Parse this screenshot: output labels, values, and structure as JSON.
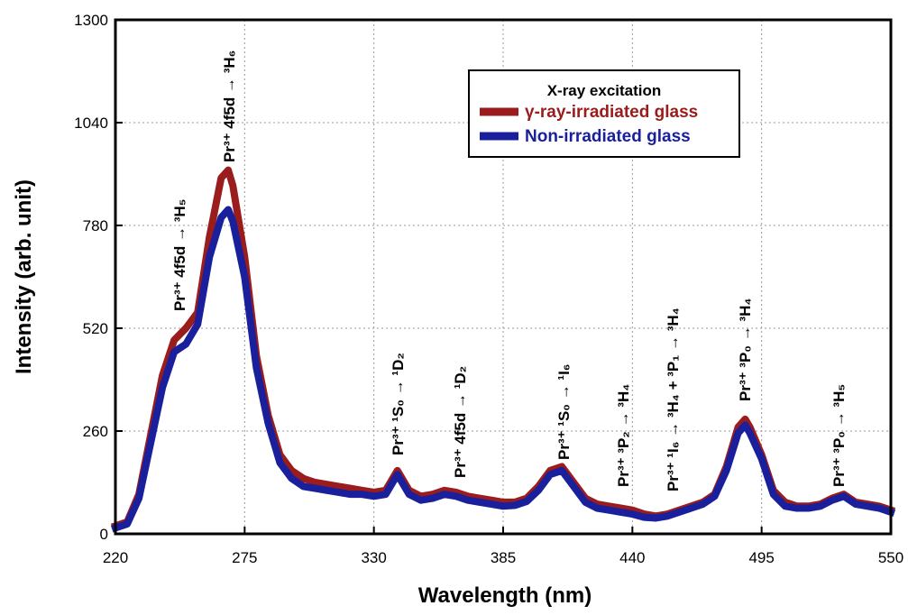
{
  "chart_data": {
    "type": "line",
    "xlabel": "Wavelength (nm)",
    "ylabel": "Intensity (arb. unit)",
    "legend_title": "X-ray excitation",
    "legend": "upper right",
    "grid": true,
    "xlim": [
      220,
      550
    ],
    "xticks": [
      220,
      275,
      330,
      385,
      440,
      495,
      550
    ],
    "ylim": [
      0,
      1300
    ],
    "yticks": [
      0,
      260,
      520,
      780,
      1040,
      1300
    ],
    "x": [
      220,
      225,
      230,
      235,
      240,
      245,
      250,
      255,
      260,
      265,
      268,
      270,
      275,
      280,
      285,
      290,
      295,
      300,
      305,
      310,
      315,
      320,
      325,
      330,
      335,
      340,
      345,
      350,
      355,
      360,
      365,
      370,
      375,
      380,
      385,
      390,
      395,
      400,
      405,
      410,
      415,
      420,
      425,
      430,
      435,
      440,
      445,
      450,
      455,
      460,
      465,
      470,
      475,
      480,
      485,
      488,
      490,
      495,
      500,
      505,
      510,
      515,
      520,
      525,
      530,
      535,
      540,
      545,
      550
    ],
    "series": [
      {
        "name": "γ-ray-irradiated glass",
        "color": "#9b1c1c",
        "values": [
          20,
          30,
          100,
          250,
          400,
          490,
          520,
          560,
          750,
          900,
          920,
          880,
          700,
          450,
          300,
          200,
          160,
          140,
          130,
          125,
          120,
          115,
          110,
          105,
          110,
          160,
          110,
          95,
          100,
          110,
          105,
          95,
          90,
          85,
          80,
          80,
          90,
          120,
          160,
          170,
          130,
          90,
          75,
          70,
          65,
          60,
          50,
          45,
          50,
          60,
          70,
          80,
          100,
          170,
          270,
          290,
          270,
          200,
          110,
          80,
          70,
          70,
          75,
          90,
          100,
          80,
          75,
          70,
          60
        ]
      },
      {
        "name": "Non-irradiated glass",
        "color": "#1a1f9c",
        "values": [
          15,
          25,
          90,
          230,
          370,
          460,
          480,
          530,
          700,
          800,
          820,
          790,
          650,
          420,
          280,
          180,
          140,
          120,
          115,
          110,
          105,
          100,
          100,
          95,
          100,
          150,
          100,
          85,
          90,
          100,
          95,
          85,
          80,
          75,
          70,
          72,
          82,
          110,
          150,
          160,
          120,
          80,
          65,
          60,
          55,
          50,
          42,
          40,
          45,
          55,
          65,
          75,
          95,
          160,
          255,
          275,
          255,
          190,
          100,
          70,
          65,
          65,
          70,
          85,
          95,
          75,
          70,
          65,
          55
        ]
      }
    ],
    "annotations": [
      "Pr³⁺ 4f5d → ³H₅",
      "Pr³⁺ 4f5d → ³H₆",
      "Pr³⁺ ¹S₀ → ¹D₂",
      "Pr³⁺ 4f5d → ¹D₂",
      "Pr³⁺ ¹S₀ → ¹I₆",
      "Pr³⁺ ³P₂ → ³H₄",
      "Pr³⁺ ¹I₆ → ³H₄ + ³P₁ → ³H₄",
      "Pr³⁺ ³P₀ → ³H₄",
      "Pr³⁺ ³P₀ → ³H₅"
    ]
  }
}
